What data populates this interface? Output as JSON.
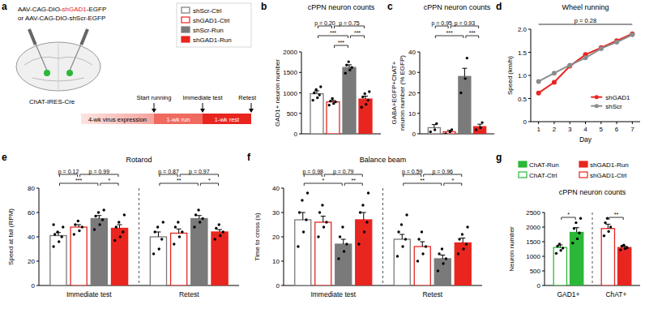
{
  "diagram": {
    "panel_label": "a",
    "virus_parts": [
      {
        "text": "AAV-CAG-DIO-"
      },
      {
        "text": "shGAD1",
        "color": "#e8251f"
      },
      {
        "text": "-EGFP"
      }
    ],
    "virus_alt": "or AAV-CAG-DIO-shScr-EGFP",
    "mouse_line": "ChAT-IRES-Cre",
    "timeline": [
      "4-wk virus expression",
      "1-wk run",
      "1-wk rest"
    ],
    "events": [
      "Start running",
      "Immediate test",
      "Retest"
    ]
  },
  "chart_data": [
    {
      "panel_label": "b",
      "type": "bar",
      "title": "cPPN neuron counts",
      "y_label": "GAD1+ neuron number",
      "categories": [
        null
      ],
      "ylim": [
        0,
        2000
      ],
      "yticks": [
        0,
        500,
        1000,
        1500,
        2000
      ],
      "series": [
        {
          "name": "shScr-Ctrl",
          "color": "#7a7a7a",
          "marker": "open",
          "values": [
            980
          ],
          "errors": [
            70
          ],
          "points": [
            [
              820,
              880,
              950,
              1000,
              1080,
              1150
            ]
          ]
        },
        {
          "name": "shGAD1-Ctrl",
          "color": "#e8251f",
          "marker": "open",
          "values": [
            780
          ],
          "errors": [
            35
          ],
          "points": [
            [
              700,
              740,
              780,
              800,
              860
            ]
          ]
        },
        {
          "name": "shScr-Run",
          "color": "#7a7a7a",
          "marker": "filled",
          "values": [
            1620
          ],
          "errors": [
            65
          ],
          "points": [
            [
              1480,
              1560,
              1620,
              1680,
              1760
            ]
          ]
        },
        {
          "name": "shGAD1-Run",
          "color": "#e8251f",
          "marker": "filled",
          "values": [
            850
          ],
          "errors": [
            70
          ],
          "points": [
            [
              650,
              720,
              820,
              900,
              980,
              1030
            ]
          ]
        }
      ],
      "comparisons": [
        {
          "category": 0,
          "from": 0,
          "to": 1,
          "text": "p = 0.20"
        },
        {
          "category": 0,
          "from": 1,
          "to": 3,
          "text": "p = 0.75"
        },
        {
          "category": 0,
          "from": 0,
          "to": 2,
          "text": "***"
        },
        {
          "category": 0,
          "from": 1,
          "to": 2,
          "text": "***"
        },
        {
          "category": 0,
          "from": 2,
          "to": 3,
          "text": "***"
        }
      ]
    },
    {
      "panel_label": "c",
      "type": "bar",
      "title": "cPPN neuron counts",
      "y_label": [
        "GABA+EGFP+ChAT+",
        "neuron number (% EGFP)"
      ],
      "categories": [
        null
      ],
      "ylim": [
        0,
        40
      ],
      "yticks": [
        0,
        10,
        20,
        30,
        40
      ],
      "series": [
        {
          "name": "shScr-Ctrl",
          "color": "#7a7a7a",
          "marker": "open",
          "values": [
            3
          ],
          "errors": [
            1.5
          ],
          "points": [
            [
              1,
              2,
              5
            ]
          ]
        },
        {
          "name": "shGAD1-Ctrl",
          "color": "#e8251f",
          "marker": "open",
          "values": [
            1
          ],
          "errors": [
            0.7
          ],
          "points": [
            [
              0,
              1,
              2
            ]
          ]
        },
        {
          "name": "shScr-Run",
          "color": "#7a7a7a",
          "marker": "filled",
          "values": [
            28
          ],
          "errors": [
            4
          ],
          "points": [
            [
              20,
              27,
              37
            ]
          ]
        },
        {
          "name": "shGAD1-Run",
          "color": "#e8251f",
          "marker": "filled",
          "values": [
            3.5
          ],
          "errors": [
            1.2
          ],
          "points": [
            [
              2,
              3,
              5.5
            ]
          ]
        }
      ],
      "comparisons": [
        {
          "category": 0,
          "from": 0,
          "to": 1,
          "text": "p = 0.95"
        },
        {
          "category": 0,
          "from": 1,
          "to": 3,
          "text": "p = 0.93"
        },
        {
          "category": 0,
          "from": 0,
          "to": 2,
          "text": "***"
        },
        {
          "category": 0,
          "from": 2,
          "to": 3,
          "text": "***"
        }
      ]
    },
    {
      "panel_label": "d",
      "type": "line",
      "title": "Wheel running",
      "y_label": "Speed (km/h)",
      "x_label": "Day",
      "x": [
        1,
        2,
        3,
        4,
        5,
        6,
        7
      ],
      "xlim": [
        0.5,
        7.5
      ],
      "xticks": [
        1,
        2,
        3,
        4,
        5,
        6,
        7
      ],
      "ylim": [
        0,
        2
      ],
      "yticks": [
        0,
        0.5,
        {
          "value": 1,
          "label": "1.0"
        },
        1.5,
        {
          "value": 2,
          "label": "2.0"
        }
      ],
      "legend": "lower right",
      "series": [
        {
          "name": "shGAD1",
          "color": "#e8251f",
          "marker": "circle",
          "line_style": "solid",
          "values": [
            0.62,
            0.85,
            1.2,
            1.45,
            1.6,
            1.75,
            1.9
          ]
        },
        {
          "name": "shScr",
          "color": "#8c8c8c",
          "marker": "circle",
          "line_style": "solid",
          "values": [
            0.87,
            1.05,
            1.22,
            1.38,
            1.58,
            1.72,
            1.88
          ]
        }
      ],
      "annotations": [
        {
          "text": "p = 0.28",
          "from": 1,
          "to": 7
        }
      ]
    },
    {
      "panel_label": "e",
      "type": "bar",
      "title": "Rotarod",
      "y_label": "Speed at fall (RPM)",
      "categories": [
        "Immediate test",
        "Retest"
      ],
      "ylim": [
        0,
        80
      ],
      "yticks": [
        0,
        20,
        40,
        60,
        80
      ],
      "series": [
        {
          "name": "shScr-Ctrl",
          "color": "#7a7a7a",
          "marker": "open",
          "values": [
            41,
            40
          ],
          "errors": [
            2.5,
            4
          ],
          "points": [
            [
              32,
              36,
              40,
              42,
              44,
              48,
              50
            ],
            [
              26,
              30,
              38,
              44,
              48,
              52
            ]
          ]
        },
        {
          "name": "shGAD1-Ctrl",
          "color": "#e8251f",
          "marker": "open",
          "values": [
            48,
            43
          ],
          "errors": [
            2,
            3.5
          ],
          "points": [
            [
              42,
              45,
              48,
              50,
              53
            ],
            [
              34,
              40,
              44,
              48,
              52
            ]
          ]
        },
        {
          "name": "shScr-Run",
          "color": "#7a7a7a",
          "marker": "filled",
          "values": [
            55,
            55
          ],
          "errors": [
            2.5,
            2.5
          ],
          "points": [
            [
              46,
              50,
              54,
              57,
              60,
              62
            ],
            [
              48,
              52,
              55,
              58,
              62
            ]
          ]
        },
        {
          "name": "shGAD1-Run",
          "color": "#e8251f",
          "marker": "filled",
          "values": [
            47,
            44
          ],
          "errors": [
            3,
            2
          ],
          "points": [
            [
              37,
              40,
              44,
              48,
              52,
              58
            ],
            [
              38,
              41,
              44,
              47,
              50
            ]
          ]
        }
      ],
      "comparisons": [
        {
          "category": 0,
          "from": 0,
          "to": 1,
          "text": "p = 0.12"
        },
        {
          "category": 0,
          "from": 1,
          "to": 3,
          "text": "p = 0.99"
        },
        {
          "category": 0,
          "from": 0,
          "to": 2,
          "text": "***"
        },
        {
          "category": 0,
          "from": 2,
          "to": 3,
          "text": "*"
        },
        {
          "category": 1,
          "from": 0,
          "to": 1,
          "text": "p = 0.87"
        },
        {
          "category": 1,
          "from": 1,
          "to": 3,
          "text": "p = 0.97"
        },
        {
          "category": 1,
          "from": 0,
          "to": 2,
          "text": "**"
        },
        {
          "category": 1,
          "from": 2,
          "to": 3,
          "text": "*"
        }
      ]
    },
    {
      "panel_label": "f",
      "type": "bar",
      "title": "Balance beam",
      "y_label": "Time to cross (s)",
      "categories": [
        "Immediate test",
        "Retest"
      ],
      "ylim": [
        0,
        40
      ],
      "yticks": [
        0,
        10,
        20,
        30,
        40
      ],
      "series": [
        {
          "name": "shScr-Ctrl",
          "color": "#7a7a7a",
          "marker": "open",
          "values": [
            27,
            19
          ],
          "errors": [
            3,
            2
          ],
          "points": [
            [
              16,
              22,
              27,
              30,
              35,
              38
            ],
            [
              12,
              16,
              19,
              22,
              25,
              29
            ]
          ]
        },
        {
          "name": "shGAD1-Ctrl",
          "color": "#e8251f",
          "marker": "open",
          "values": [
            26,
            16
          ],
          "errors": [
            2.5,
            2
          ],
          "points": [
            [
              20,
              24,
              26,
              30,
              33
            ],
            [
              10,
              13,
              16,
              19,
              22
            ]
          ]
        },
        {
          "name": "shScr-Run",
          "color": "#7a7a7a",
          "marker": "filled",
          "values": [
            17,
            11
          ],
          "errors": [
            2,
            1.5
          ],
          "points": [
            [
              11,
              14,
              17,
              20,
              24
            ],
            [
              6,
              9,
              11,
              13,
              15
            ]
          ]
        },
        {
          "name": "shGAD1-Run",
          "color": "#e8251f",
          "marker": "filled",
          "values": [
            27,
            17.5
          ],
          "errors": [
            3,
            2
          ],
          "points": [
            [
              17,
              22,
              26,
              30,
              33,
              38
            ],
            [
              13,
              15,
              17,
              19,
              21,
              24
            ]
          ]
        }
      ],
      "comparisons": [
        {
          "category": 0,
          "from": 0,
          "to": 1,
          "text": "p = 0.98"
        },
        {
          "category": 0,
          "from": 1,
          "to": 3,
          "text": "p = 0.79"
        },
        {
          "category": 0,
          "from": 0,
          "to": 2,
          "text": "*"
        },
        {
          "category": 0,
          "from": 2,
          "to": 3,
          "text": "**"
        },
        {
          "category": 1,
          "from": 0,
          "to": 1,
          "text": "p = 0.59"
        },
        {
          "category": 1,
          "from": 1,
          "to": 3,
          "text": "p = 0.96"
        },
        {
          "category": 1,
          "from": 0,
          "to": 2,
          "text": "**"
        },
        {
          "category": 1,
          "from": 2,
          "to": 3,
          "text": "*"
        }
      ]
    },
    {
      "panel_label": "g",
      "type": "bar",
      "title": "cPPN neuron counts",
      "y_label": "Neuron number",
      "categories": [
        "GAD1+",
        "ChAT+"
      ],
      "ylim": [
        0,
        2500
      ],
      "yticks": [
        0,
        500,
        1000,
        1500,
        2000,
        2500
      ],
      "legend": "top",
      "series": [
        {
          "name": "ChAT-Ctrl",
          "color": "#2bb838",
          "marker": "open",
          "values": [
            1300,
            null
          ],
          "errors": [
            90,
            null
          ],
          "points": [
            [
              1100,
              1200,
              1280,
              1350,
              1420
            ],
            null
          ]
        },
        {
          "name": "ChAT-Run",
          "color": "#2bb838",
          "marker": "filled",
          "values": [
            1820,
            null
          ],
          "errors": [
            160,
            null
          ],
          "points": [
            [
              1450,
              1600,
              1800,
              1950,
              2150,
              2300
            ],
            null
          ]
        },
        {
          "name": "shGAD1-Ctrl",
          "color": "#e8251f",
          "marker": "open",
          "values": [
            null,
            1950
          ],
          "errors": [
            null,
            150
          ],
          "points": [
            null,
            [
              1700,
              1850,
              2000,
              2150,
              2300
            ]
          ]
        },
        {
          "name": "shGAD1-Run",
          "color": "#e8251f",
          "marker": "filled",
          "values": [
            null,
            1300
          ],
          "errors": [
            null,
            40
          ],
          "points": [
            null,
            [
              1220,
              1260,
              1300,
              1350,
              1380
            ]
          ]
        }
      ],
      "comparisons": [
        {
          "category": 0,
          "from": 0,
          "to": 1,
          "text": "*"
        },
        {
          "category": 1,
          "from": 2,
          "to": 3,
          "text": "**"
        }
      ]
    }
  ]
}
